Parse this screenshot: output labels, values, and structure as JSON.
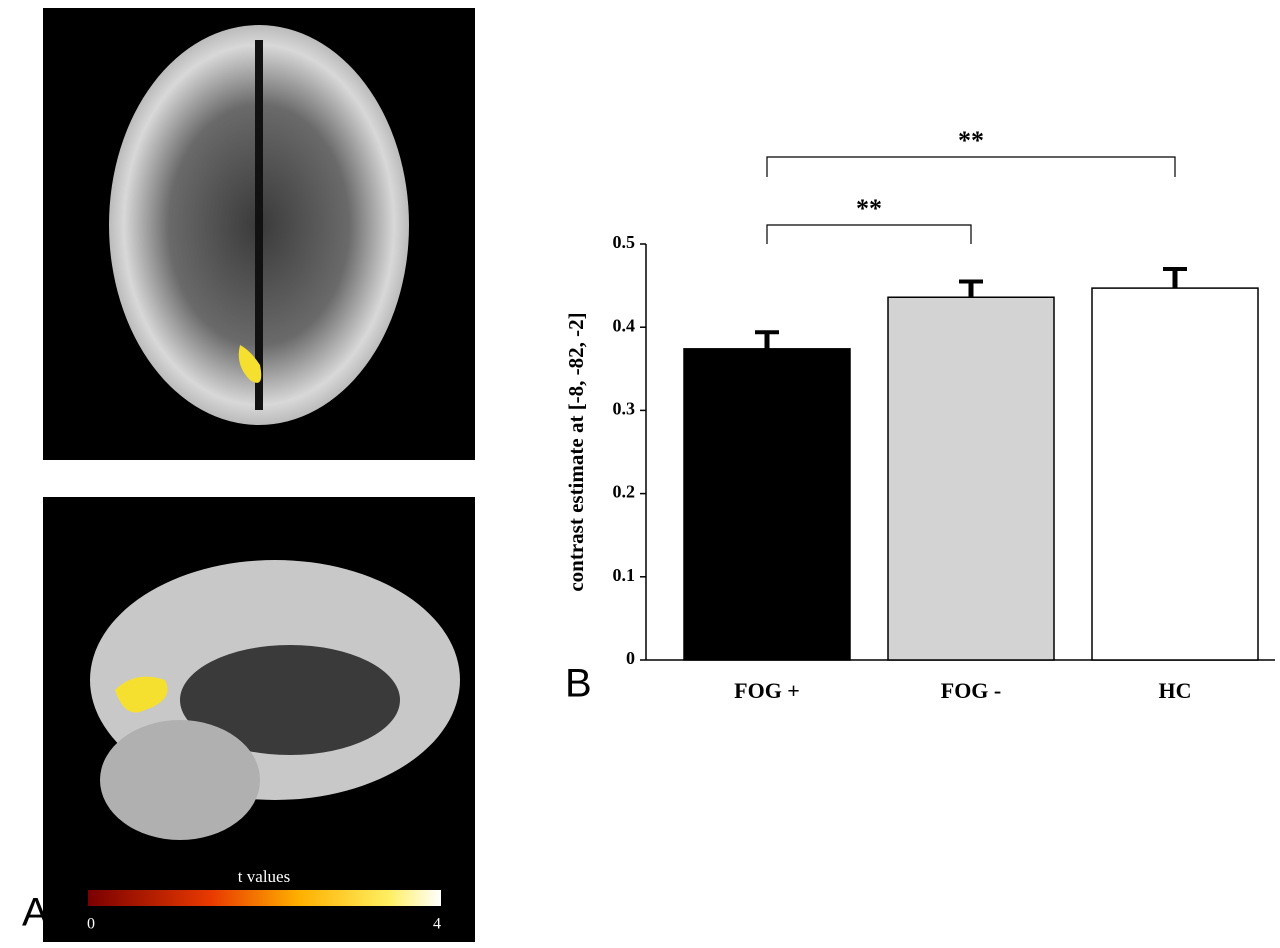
{
  "panel_labels": [
    "A",
    "B"
  ],
  "colorbar": {
    "title": "t values",
    "lim": [
      0,
      4
    ],
    "ticks": [
      0,
      4
    ]
  },
  "chart_data": {
    "type": "bar",
    "ylabel": "contrast estimate at [-8, -82, -2]",
    "categories": [
      "FOG +",
      "FOG -",
      "HC"
    ],
    "values": [
      0.374,
      0.436,
      0.447
    ],
    "errors": [
      0.02,
      0.019,
      0.023
    ],
    "colors": [
      "#000000",
      "#d3d3d3",
      "#ffffff"
    ],
    "ylim": [
      0,
      0.5
    ],
    "yticks": [
      0,
      0.1,
      0.2,
      0.3,
      0.4,
      0.5
    ],
    "annotations": [
      "**",
      "**"
    ]
  }
}
